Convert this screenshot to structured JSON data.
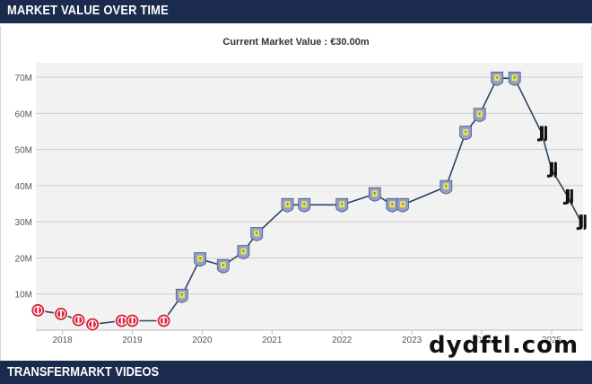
{
  "header": {
    "title": "MARKET VALUE OVER TIME"
  },
  "footer": {
    "title": "TRANSFERMARKT VIDEOS"
  },
  "watermark": "dydftl.com",
  "chart_data": {
    "type": "line",
    "title": "",
    "subtitle": "Current Market Value : €30.00m",
    "xlabel": "",
    "ylabel": "",
    "x_axis": {
      "min": 2017.62,
      "max": 2025.45,
      "ticks": [
        "2018",
        "2019",
        "2020",
        "2021",
        "2022",
        "2023",
        "2024",
        "2025"
      ]
    },
    "y_axis": {
      "min": 0,
      "max": 74,
      "ticks": [
        "10M",
        "20M",
        "30M",
        "40M",
        "50M",
        "60M",
        "70M"
      ],
      "unit": "M"
    },
    "grid": true,
    "line_color": "#2d4466",
    "background": "#f2f2f2",
    "club_badges": {
      "girona": {
        "icon": "girona-badge-icon",
        "color": "#d9283d"
      },
      "aston_villa": {
        "icon": "aston-villa-badge-icon",
        "color": "#8e9fd2",
        "accent": "#f3e73a"
      },
      "juventus": {
        "icon": "juventus-badge-icon",
        "color": "#111111"
      }
    },
    "points": [
      {
        "x": 2017.65,
        "y": 5.5,
        "club": "girona"
      },
      {
        "x": 2017.98,
        "y": 4.5,
        "club": "girona"
      },
      {
        "x": 2018.23,
        "y": 2.8,
        "club": "girona"
      },
      {
        "x": 2018.43,
        "y": 1.6,
        "club": "girona"
      },
      {
        "x": 2018.85,
        "y": 2.6,
        "club": "girona"
      },
      {
        "x": 2019.0,
        "y": 2.6,
        "club": "girona"
      },
      {
        "x": 2019.45,
        "y": 2.6,
        "club": "girona"
      },
      {
        "x": 2019.71,
        "y": 9.6,
        "club": "aston_villa"
      },
      {
        "x": 2019.97,
        "y": 19.7,
        "club": "aston_villa"
      },
      {
        "x": 2020.3,
        "y": 17.8,
        "club": "aston_villa"
      },
      {
        "x": 2020.59,
        "y": 21.7,
        "club": "aston_villa"
      },
      {
        "x": 2020.78,
        "y": 26.7,
        "club": "aston_villa"
      },
      {
        "x": 2021.22,
        "y": 34.7,
        "club": "aston_villa"
      },
      {
        "x": 2021.46,
        "y": 34.7,
        "club": "aston_villa"
      },
      {
        "x": 2022.0,
        "y": 34.7,
        "club": "aston_villa"
      },
      {
        "x": 2022.47,
        "y": 37.7,
        "club": "aston_villa"
      },
      {
        "x": 2022.72,
        "y": 34.7,
        "club": "aston_villa"
      },
      {
        "x": 2022.87,
        "y": 34.7,
        "club": "aston_villa"
      },
      {
        "x": 2023.49,
        "y": 39.7,
        "club": "aston_villa"
      },
      {
        "x": 2023.77,
        "y": 54.7,
        "club": "aston_villa"
      },
      {
        "x": 2023.97,
        "y": 59.7,
        "club": "aston_villa"
      },
      {
        "x": 2024.22,
        "y": 69.7,
        "club": "aston_villa"
      },
      {
        "x": 2024.47,
        "y": 69.7,
        "club": "aston_villa"
      },
      {
        "x": 2024.86,
        "y": 54.5,
        "club": "juventus"
      },
      {
        "x": 2025.0,
        "y": 44.5,
        "club": "juventus"
      },
      {
        "x": 2025.23,
        "y": 37.0,
        "club": "juventus"
      },
      {
        "x": 2025.42,
        "y": 30.0,
        "club": "juventus"
      }
    ]
  }
}
